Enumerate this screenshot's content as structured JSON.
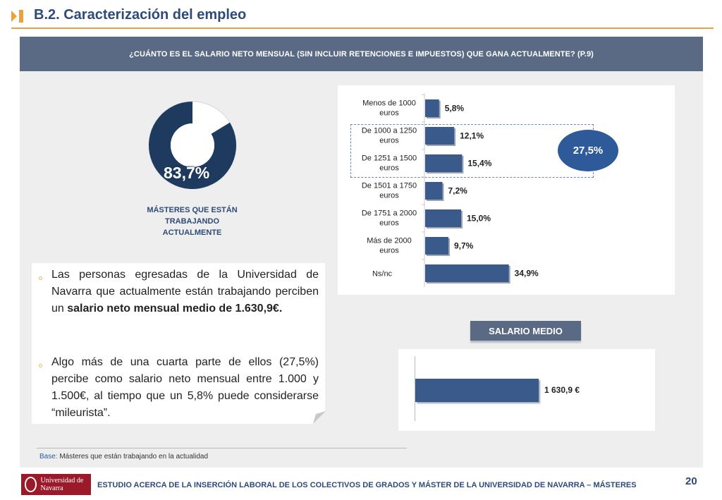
{
  "header": {
    "title": "B.2. Caracterización del empleo",
    "accent_color": "#e8a33d"
  },
  "question": "¿CUÁNTO ES EL SALARIO NETO MENSUAL (SIN INCLUIR RETENCIONES E IMPUESTOS) QUE GANA ACTUALMENTE? (P.9)",
  "donut": {
    "value_text": "83,7%",
    "value": 83.7,
    "caption": "MÁSTERES QUE ESTÁN TRABAJANDO ACTUALMENTE",
    "color": "#1f3a5f"
  },
  "text_box": {
    "p1_a": "Las personas egresadas de la Universidad de Navarra que actualmente están trabajando perciben un ",
    "p1_b": "salario neto mensual medio de 1.630,9€.",
    "p2": "Algo más de una cuarta parte de ellos (27,5%) percibe como salario neto mensual entre 1.000 y 1.500€, al tiempo que un 5,8% puede considerarse “mileurista”."
  },
  "chart_data": [
    {
      "type": "bar",
      "orientation": "horizontal",
      "categories": [
        "Menos de 1000 euros",
        "De 1000 a 1250 euros",
        "De 1251 a 1500 euros",
        "De 1501 a 1750 euros",
        "De 1751 a 2000 euros",
        "Más de 2000 euros",
        "Ns/nc"
      ],
      "values": [
        5.8,
        12.1,
        15.4,
        7.2,
        15.0,
        9.7,
        34.9
      ],
      "value_labels": [
        "5,8%",
        "12,1%",
        "15,4%",
        "7,2%",
        "15,0%",
        "9,7%",
        "34,9%"
      ],
      "bar_color": "#3a5a8c",
      "annotation": "27,5%"
    },
    {
      "type": "bar",
      "orientation": "horizontal",
      "title": "SALARIO MEDIO",
      "values": [
        1630.9
      ],
      "value_labels": [
        "1 630,9 €"
      ]
    }
  ],
  "base_note": {
    "label": "Base:",
    "text": " Másteres que están trabajando en la actualidad"
  },
  "footer": {
    "logo_text": "Universidad de Navarra",
    "text": "ESTUDIO ACERCA DE LA INSERCIÓN LABORAL DE LOS COLECTIVOS DE GRADOS Y MÁSTER DE LA UNIVERSIDAD DE NAVARRA – MÁSTERES",
    "page": "20"
  }
}
